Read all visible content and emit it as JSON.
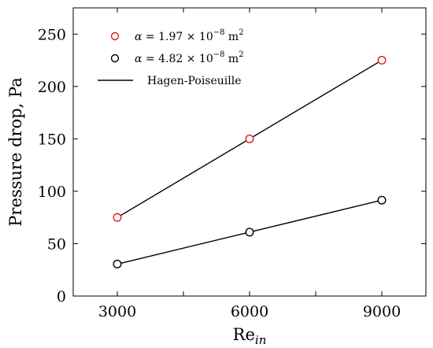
{
  "chart_data": {
    "type": "line",
    "xlabel": "Re",
    "xlabel_sub": "in",
    "ylabel": "Pressure drop, Pa",
    "xlim": [
      2000,
      10000
    ],
    "ylim": [
      0,
      275
    ],
    "x_ticks": [
      3000,
      6000,
      9000
    ],
    "x_minor_ticks": [
      4500,
      7500
    ],
    "y_ticks": [
      0,
      50,
      100,
      150,
      200,
      250
    ],
    "x_tick_labels": [
      "3000",
      "6000",
      "9000"
    ],
    "y_tick_labels": [
      "0",
      "50",
      "100",
      "150",
      "200",
      "250"
    ],
    "grid": false,
    "legend_position": "top-left",
    "series": [
      {
        "name": "α = 1.97 × 10⁻⁸ m²",
        "legend": {
          "symbol": "α",
          "eq": "= 1.97 × 10",
          "exp": "−8",
          "unit": " m",
          "unit_exp": "2"
        },
        "marker": "open-circle",
        "color": "#e41a1c",
        "x": [
          3000,
          6000,
          9000
        ],
        "y": [
          75,
          150,
          225
        ]
      },
      {
        "name": "α = 4.82 × 10⁻⁸ m²",
        "legend": {
          "symbol": "α",
          "eq": "= 4.82 × 10",
          "exp": "−8",
          "unit": " m",
          "unit_exp": "2"
        },
        "marker": "open-circle",
        "color": "#000000",
        "x": [
          3000,
          6000,
          9000
        ],
        "y": [
          30.5,
          61,
          91.5
        ]
      }
    ],
    "fit_lines": {
      "name": "Hagen-Poiseuille",
      "color": "#000000",
      "lines": [
        {
          "x": [
            3000,
            9000
          ],
          "y": [
            75,
            225
          ]
        },
        {
          "x": [
            3000,
            9000
          ],
          "y": [
            30.5,
            91.5
          ]
        }
      ]
    }
  }
}
